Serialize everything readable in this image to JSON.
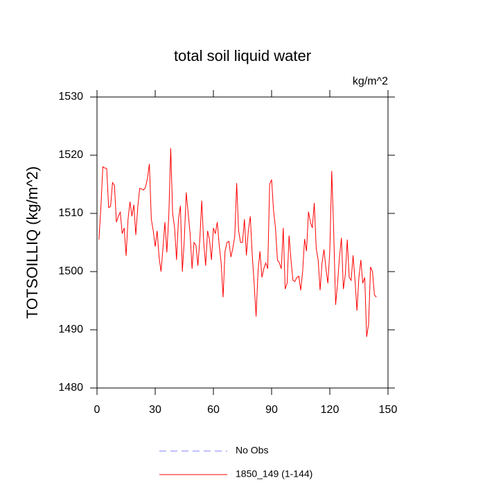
{
  "chart_data": {
    "type": "line",
    "title": "total soil liquid water",
    "units": "kg/m^2",
    "y_label": "TOTSOILLIQ  (kg/m^2)",
    "x": [
      1,
      2,
      3,
      4,
      5,
      6,
      7,
      8,
      9,
      10,
      11,
      12,
      13,
      14,
      15,
      16,
      17,
      18,
      19,
      20,
      21,
      22,
      23,
      24,
      25,
      26,
      27,
      28,
      29,
      30,
      31,
      32,
      33,
      34,
      35,
      36,
      37,
      38,
      39,
      40,
      41,
      42,
      43,
      44,
      45,
      46,
      47,
      48,
      49,
      50,
      51,
      52,
      53,
      54,
      55,
      56,
      57,
      58,
      59,
      60,
      61,
      62,
      63,
      64,
      65,
      66,
      67,
      68,
      69,
      70,
      71,
      72,
      73,
      74,
      75,
      76,
      77,
      78,
      79,
      80,
      81,
      82,
      83,
      84,
      85,
      86,
      87,
      88,
      89,
      90,
      91,
      92,
      93,
      94,
      95,
      96,
      97,
      98,
      99,
      100,
      101,
      102,
      103,
      104,
      105,
      106,
      107,
      108,
      109,
      110,
      111,
      112,
      113,
      114,
      115,
      116,
      117,
      118,
      119,
      120,
      121,
      122,
      123,
      124,
      125,
      126,
      127,
      128,
      129,
      130,
      131,
      132,
      133,
      134,
      135,
      136,
      137,
      138,
      139,
      140,
      141,
      142,
      143,
      144
    ],
    "series": [
      {
        "name": "No Obs",
        "color": "#8080ff",
        "dashed": true,
        "values": [
          null,
          null,
          null,
          null,
          null,
          null,
          null,
          null,
          null,
          null,
          null,
          null,
          null,
          null,
          null,
          null,
          null,
          null,
          null,
          null,
          null,
          null,
          null,
          null,
          null,
          null,
          null,
          null,
          null,
          null,
          null,
          null,
          null,
          null,
          null,
          null,
          null,
          null,
          null,
          null,
          null,
          null,
          null,
          null,
          null,
          null,
          null,
          null,
          null,
          null,
          null,
          null,
          null,
          null,
          null,
          null,
          null,
          null,
          null,
          null,
          null,
          null,
          null,
          null,
          null,
          null,
          null,
          null,
          null,
          null,
          null,
          null,
          null,
          null,
          null,
          null,
          null,
          null,
          null,
          null,
          null,
          null,
          null,
          null,
          null,
          null,
          null,
          null,
          null,
          null,
          null,
          null,
          null,
          null,
          null,
          null,
          null,
          null,
          null,
          null,
          null,
          null,
          null,
          null,
          null,
          null,
          null,
          null,
          null,
          null,
          null,
          null,
          null,
          null,
          null,
          null,
          null,
          null,
          null,
          null,
          null,
          null,
          null,
          null,
          null,
          null,
          null,
          null,
          null,
          null,
          null,
          null,
          null,
          null,
          null,
          null,
          null,
          null,
          null,
          null,
          null,
          null,
          null,
          null
        ]
      },
      {
        "name": "1850_149 (1-144)",
        "color": "#ff0000",
        "dashed": false,
        "values": [
          1505.5,
          1511,
          1518,
          1517.8,
          1517.7,
          1511,
          1511.2,
          1515.3,
          1514.8,
          1508.5,
          1509.5,
          1510.2,
          1506.5,
          1507.5,
          1502.7,
          1509,
          1512,
          1509.5,
          1511.5,
          1506.3,
          1511,
          1514.3,
          1514.2,
          1514,
          1514.5,
          1516,
          1518.5,
          1509,
          1507,
          1504.3,
          1507,
          1502.5,
          1500,
          1504,
          1508.5,
          1503.3,
          1509.5,
          1521.2,
          1510,
          1507.5,
          1502,
          1509,
          1511.3,
          1500,
          1505.5,
          1513.6,
          1510,
          1506.5,
          1500.5,
          1505,
          1504.5,
          1501,
          1505.5,
          1512.2,
          1505,
          1501,
          1507,
          1505.5,
          1502,
          1507.5,
          1506.5,
          1508.5,
          1504.5,
          1501.5,
          1495.6,
          1503.5,
          1505,
          1505.2,
          1502.5,
          1504,
          1506,
          1515.2,
          1507,
          1505,
          1505,
          1509,
          1502.8,
          1507,
          1509.5,
          1503,
          1498,
          1492.3,
          1500,
          1503.5,
          1499,
          1500.5,
          1501.5,
          1500.5,
          1515,
          1515.8,
          1510.5,
          1507.5,
          1502,
          1501.5,
          1500.5,
          1507.5,
          1497,
          1498,
          1506.2,
          1502,
          1498.5,
          1498.3,
          1499,
          1499.2,
          1496.8,
          1500,
          1505.6,
          1503.5,
          1510.3,
          1508.5,
          1507.5,
          1511.8,
          1504,
          1502,
          1496.8,
          1501.5,
          1503.8,
          1500.5,
          1498,
          1503.5,
          1517.3,
          1507,
          1494.3,
          1498,
          1502.5,
          1505.8,
          1497,
          1499.5,
          1505.5,
          1499,
          1498.5,
          1502.8,
          1498.5,
          1493.3,
          1499,
          1502,
          1498,
          1499,
          1488.8,
          1491,
          1500.8,
          1500,
          1496,
          1495.6
        ]
      }
    ],
    "xlim": [
      0,
      150
    ],
    "xticks": [
      0,
      30,
      60,
      90,
      120,
      150
    ],
    "ylim": [
      1480,
      1530
    ],
    "yticks": [
      1480,
      1490,
      1500,
      1510,
      1520,
      1530
    ]
  }
}
